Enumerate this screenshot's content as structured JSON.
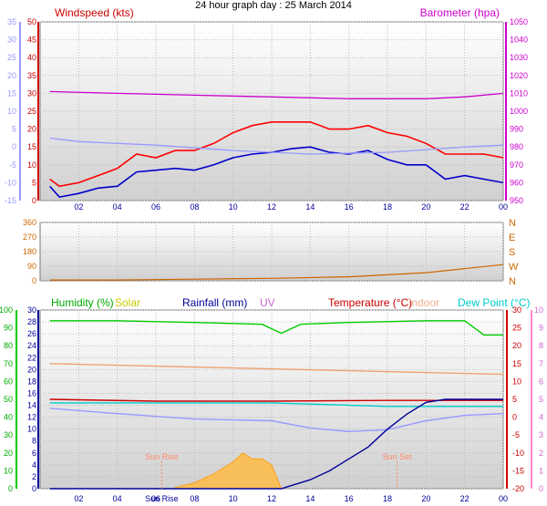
{
  "title": "24 hour graph day : 25 March 2014",
  "chart_data": [
    {
      "type": "line",
      "panel": "wind-barometer",
      "labels": {
        "left": "Windspeed (kts)",
        "right": "Barometer (hpa)"
      },
      "x_ticks": [
        "02",
        "04",
        "06",
        "08",
        "10",
        "12",
        "14",
        "16",
        "18",
        "20",
        "22",
        "00"
      ],
      "x_range_hours": [
        0,
        24
      ],
      "y_left_ticks": [
        0,
        5,
        10,
        15,
        20,
        25,
        30,
        35,
        40,
        45,
        50
      ],
      "y_left_range": [
        0,
        50
      ],
      "y_left2_ticks": [
        -15,
        -10,
        -5,
        0,
        5,
        10,
        15,
        20,
        25,
        30,
        35
      ],
      "y_right_ticks": [
        950,
        960,
        970,
        980,
        990,
        1000,
        1010,
        1020,
        1030,
        1040,
        1050
      ],
      "y_right_range": [
        950,
        1050
      ],
      "series": [
        {
          "name": "Windspeed (kts)",
          "color": "#0000cc",
          "axis": "left",
          "x": [
            0.5,
            1,
            2,
            3,
            4,
            5,
            6,
            7,
            8,
            9,
            10,
            11,
            12,
            13,
            14,
            15,
            16,
            17,
            18,
            19,
            20,
            21,
            22,
            23,
            24
          ],
          "y": [
            4,
            1,
            2,
            3.5,
            4,
            8,
            8.5,
            9,
            8.5,
            10,
            12,
            13,
            13.5,
            14.5,
            15,
            13.5,
            13,
            14,
            11.5,
            10,
            10,
            6,
            7,
            6,
            5
          ]
        },
        {
          "name": "Gust",
          "color": "#ff0000",
          "axis": "left",
          "x": [
            0.5,
            1,
            2,
            3,
            4,
            5,
            6,
            7,
            8,
            9,
            10,
            11,
            12,
            13,
            14,
            15,
            16,
            17,
            18,
            19,
            20,
            21,
            22,
            23,
            24
          ],
          "y": [
            6,
            4,
            5,
            7,
            9,
            13,
            12,
            14,
            14,
            16,
            19,
            21,
            22,
            22,
            22,
            20,
            20,
            21,
            19,
            18,
            16,
            13,
            13,
            13,
            12
          ]
        },
        {
          "name": "Barometer (hpa)",
          "color": "#cc00cc",
          "axis": "right",
          "x": [
            0.5,
            4,
            8,
            12,
            16,
            20,
            22,
            24
          ],
          "y": [
            1011,
            1010,
            1009,
            1008,
            1007,
            1007,
            1008,
            1010
          ]
        },
        {
          "name": "Temperature trace",
          "color": "#9999ff",
          "axis": "left2",
          "x": [
            0.5,
            2,
            6,
            10,
            14,
            18,
            22,
            24
          ],
          "y": [
            2.5,
            1.5,
            0.5,
            -1,
            -2,
            -1.5,
            0,
            0.5
          ]
        }
      ]
    },
    {
      "type": "line",
      "panel": "wind-direction",
      "y_left_ticks": [
        0,
        90,
        180,
        270,
        360
      ],
      "y_right_labels": [
        "N",
        "E",
        "S",
        "W",
        "N"
      ],
      "series": [
        {
          "name": "Wind direction",
          "color": "#cc6600",
          "x": [
            0.5,
            4,
            8,
            12,
            16,
            20,
            24
          ],
          "y": [
            5,
            5,
            10,
            15,
            25,
            50,
            100
          ]
        }
      ]
    },
    {
      "type": "line",
      "panel": "temperature-humidity",
      "labels": {
        "humidity": "Humidity (%)",
        "solar": "Solar",
        "rainfall": "Rainfall (mm)",
        "uv": "UV",
        "temperature": "Temperature (°C)",
        "indoor": "Indoor",
        "dewpoint": "Dew Point (°C)"
      },
      "x_ticks": [
        "02",
        "04",
        "06",
        "08",
        "10",
        "12",
        "14",
        "16",
        "18",
        "20",
        "22",
        "00"
      ],
      "y_humidity_ticks": [
        0,
        10,
        20,
        30,
        40,
        50,
        60,
        70,
        80,
        90,
        100
      ],
      "y_rain_ticks": [
        0,
        2,
        4,
        6,
        8,
        10,
        12,
        14,
        16,
        18,
        20,
        22,
        24,
        26,
        28,
        30
      ],
      "y_temp_right_ticks": [
        -20,
        -15,
        -10,
        -5,
        0,
        5,
        10,
        15,
        20,
        25,
        30
      ],
      "y_uv_ticks": [
        0,
        1,
        2,
        3,
        4,
        5,
        6,
        7,
        8,
        9,
        10
      ],
      "annotations": [
        {
          "text": "Sun Rise",
          "x_hour": 6.3
        },
        {
          "text": "Sun Set",
          "x_hour": 18.5
        },
        {
          "text": "Sun Rise",
          "label": "Sun Rise"
        }
      ],
      "series": [
        {
          "name": "Humidity (%)",
          "color": "#00cc00",
          "axis": "humidity",
          "x": [
            0.5,
            4,
            8,
            11.5,
            12.5,
            13.5,
            16,
            20,
            22,
            23,
            24
          ],
          "y": [
            94,
            94,
            93,
            92,
            87,
            92,
            93,
            94,
            94,
            86,
            86
          ]
        },
        {
          "name": "Temperature (°C)",
          "color": "#cc0000",
          "axis": "temp",
          "x": [
            0.5,
            6,
            12,
            18,
            24
          ],
          "y": [
            5,
            4.5,
            4.5,
            4.7,
            4.7
          ]
        },
        {
          "name": "Indoor",
          "color": "#f0a070",
          "axis": "temp",
          "x": [
            0.5,
            24
          ],
          "y": [
            15,
            12
          ]
        },
        {
          "name": "Dew Point (°C)",
          "color": "#00cccc",
          "axis": "temp",
          "x": [
            0.5,
            12,
            18,
            24
          ],
          "y": [
            4,
            4,
            3,
            3
          ]
        },
        {
          "name": "Temperature trace 2",
          "color": "#9999ff",
          "axis": "temp",
          "x": [
            0.5,
            4,
            8,
            12,
            14,
            16,
            18,
            20,
            22,
            24
          ],
          "y": [
            2.5,
            1,
            -0.5,
            -1,
            -3,
            -4,
            -3.5,
            -1,
            0.5,
            1
          ]
        },
        {
          "name": "Rainfall (mm)",
          "color": "#000099",
          "axis": "rain",
          "x": [
            0.5,
            12.5,
            13,
            14,
            15,
            16,
            17,
            18,
            19,
            20,
            21,
            22,
            23,
            24
          ],
          "y": [
            0,
            0,
            0.5,
            1.5,
            3,
            5,
            7,
            10,
            12.5,
            14.5,
            15,
            15,
            15,
            15
          ]
        },
        {
          "name": "Solar",
          "color": "#ffbb44",
          "axis": "solar",
          "x": [
            7,
            8,
            9,
            10,
            10.5,
            11,
            11.5,
            12,
            12.5
          ],
          "y": [
            0.2,
            1,
            2.5,
            4.5,
            6,
            5,
            5,
            4,
            0
          ]
        }
      ]
    }
  ]
}
